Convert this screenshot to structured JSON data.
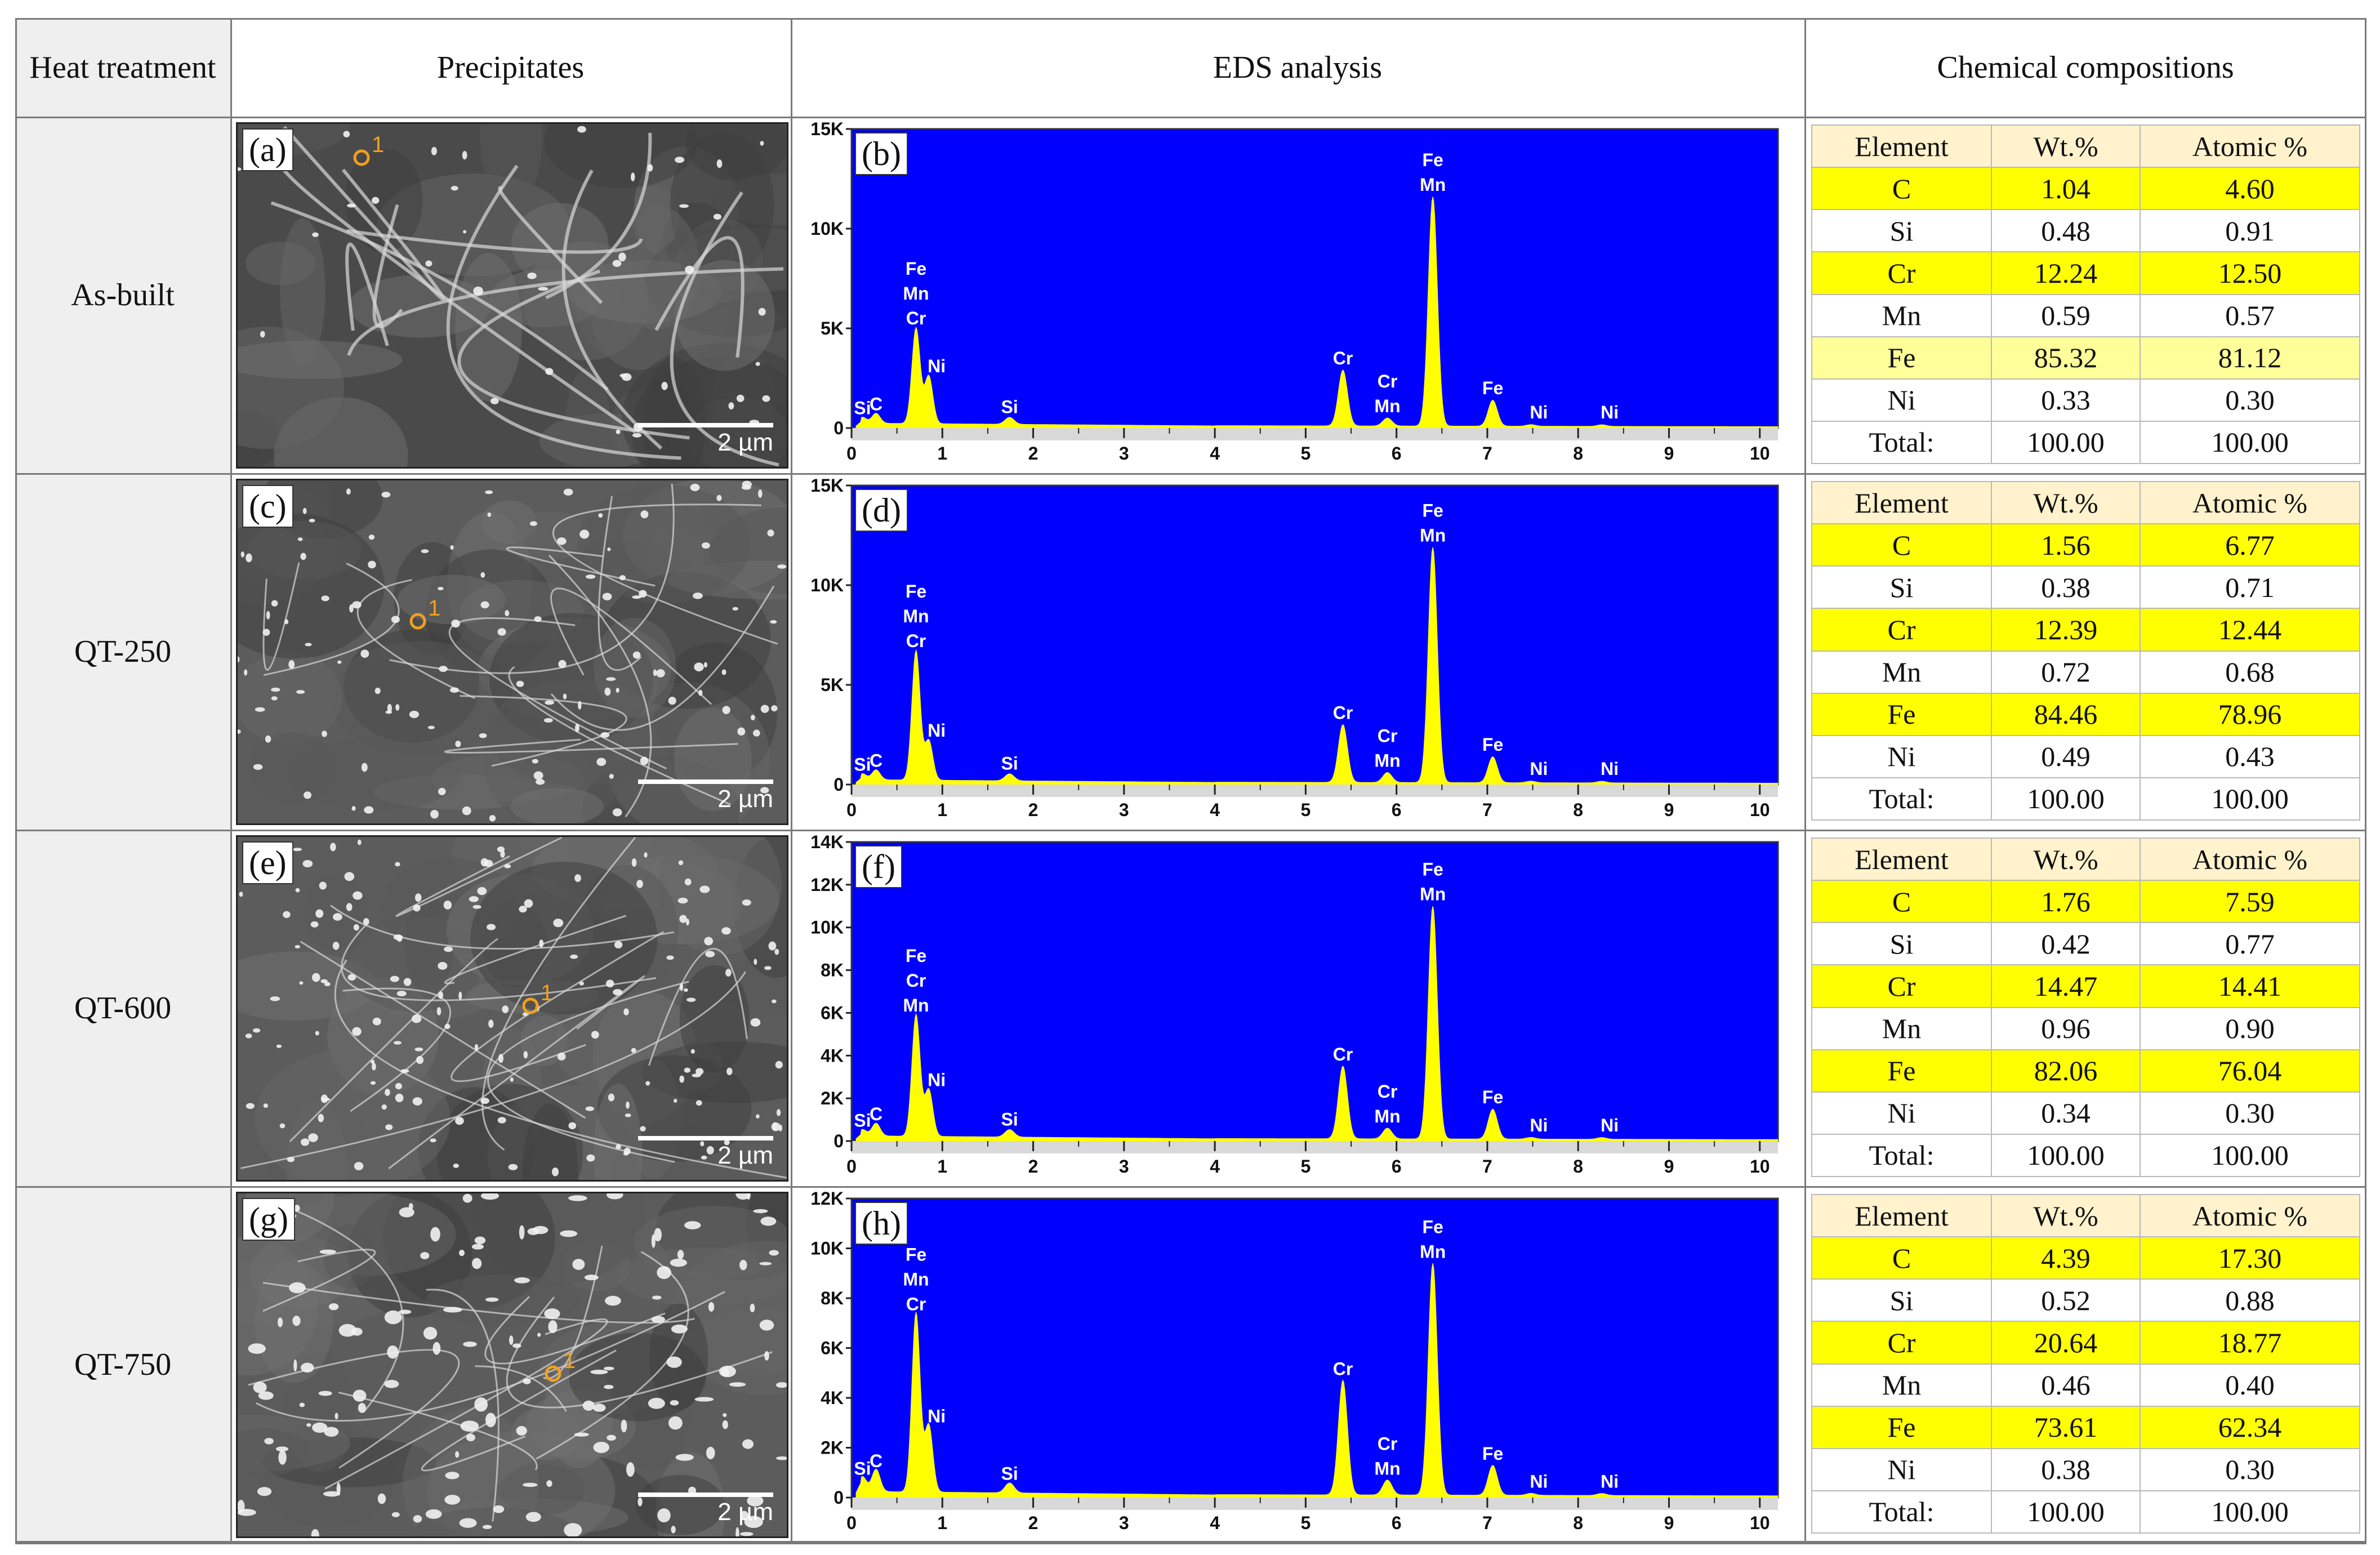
{
  "headers": {
    "heat_treatment": "Heat treatment",
    "precipitates": "Precipitates",
    "eds": "EDS analysis",
    "chem": "Chemical compositions"
  },
  "table_columns": [
    "Element",
    "Wt.%",
    "Atomic %"
  ],
  "total_label": "Total:",
  "scale_label": "2 µm",
  "point_marker": "1",
  "rows": [
    {
      "treatment": "As-built",
      "sem_tag": "(a)",
      "eds_tag": "(b)",
      "yticks": [
        "15K",
        "10K",
        "5K",
        "0"
      ],
      "comp": [
        {
          "el": "C",
          "wt": "1.04",
          "at": "4.60",
          "hl": "hl"
        },
        {
          "el": "Si",
          "wt": "0.48",
          "at": "0.91",
          "hl": "wt"
        },
        {
          "el": "Cr",
          "wt": "12.24",
          "at": "12.50",
          "hl": "hl"
        },
        {
          "el": "Mn",
          "wt": "0.59",
          "at": "0.57",
          "hl": "wt"
        },
        {
          "el": "Fe",
          "wt": "85.32",
          "at": "81.12",
          "hl": "hl2"
        },
        {
          "el": "Ni",
          "wt": "0.33",
          "at": "0.30",
          "hl": "wt"
        }
      ],
      "total": [
        "100.00",
        "100.00"
      ]
    },
    {
      "treatment": "QT-250",
      "sem_tag": "(c)",
      "eds_tag": "(d)",
      "yticks": [
        "15K",
        "10K",
        "5K",
        "0"
      ],
      "comp": [
        {
          "el": "C",
          "wt": "1.56",
          "at": "6.77",
          "hl": "hl"
        },
        {
          "el": "Si",
          "wt": "0.38",
          "at": "0.71",
          "hl": "wt"
        },
        {
          "el": "Cr",
          "wt": "12.39",
          "at": "12.44",
          "hl": "hl"
        },
        {
          "el": "Mn",
          "wt": "0.72",
          "at": "0.68",
          "hl": "wt"
        },
        {
          "el": "Fe",
          "wt": "84.46",
          "at": "78.96",
          "hl": "hl"
        },
        {
          "el": "Ni",
          "wt": "0.49",
          "at": "0.43",
          "hl": "wt"
        }
      ],
      "total": [
        "100.00",
        "100.00"
      ]
    },
    {
      "treatment": "QT-600",
      "sem_tag": "(e)",
      "eds_tag": "(f)",
      "yticks": [
        "14K",
        "12K",
        "10K",
        "8K",
        "6K",
        "4K",
        "2K",
        "0"
      ],
      "comp": [
        {
          "el": "C",
          "wt": "1.76",
          "at": "7.59",
          "hl": "hl"
        },
        {
          "el": "Si",
          "wt": "0.42",
          "at": "0.77",
          "hl": "wt"
        },
        {
          "el": "Cr",
          "wt": "14.47",
          "at": "14.41",
          "hl": "hl"
        },
        {
          "el": "Mn",
          "wt": "0.96",
          "at": "0.90",
          "hl": "wt"
        },
        {
          "el": "Fe",
          "wt": "82.06",
          "at": "76.04",
          "hl": "hl"
        },
        {
          "el": "Ni",
          "wt": "0.34",
          "at": "0.30",
          "hl": "wt"
        }
      ],
      "total": [
        "100.00",
        "100.00"
      ]
    },
    {
      "treatment": "QT-750",
      "sem_tag": "(g)",
      "eds_tag": "(h)",
      "yticks": [
        "12K",
        "10K",
        "8K",
        "6K",
        "4K",
        "2K",
        "0"
      ],
      "comp": [
        {
          "el": "C",
          "wt": "4.39",
          "at": "17.30",
          "hl": "hl"
        },
        {
          "el": "Si",
          "wt": "0.52",
          "at": "0.88",
          "hl": "wt"
        },
        {
          "el": "Cr",
          "wt": "20.64",
          "at": "18.77",
          "hl": "hl"
        },
        {
          "el": "Mn",
          "wt": "0.46",
          "at": "0.40",
          "hl": "wt"
        },
        {
          "el": "Fe",
          "wt": "73.61",
          "at": "62.34",
          "hl": "hl"
        },
        {
          "el": "Ni",
          "wt": "0.38",
          "at": "0.30",
          "hl": "wt"
        }
      ],
      "total": [
        "100.00",
        "100.00"
      ]
    }
  ],
  "chart_data": [
    {
      "type": "area",
      "panel": "(b)",
      "x_ticks": [
        "0",
        "1",
        "2",
        "3",
        "4",
        "5",
        "6",
        "7",
        "8",
        "9",
        "10"
      ],
      "xlim": [
        0,
        10.2
      ],
      "ylim": [
        0,
        15000
      ],
      "peaks": [
        {
          "x": 0.12,
          "y": 300,
          "label": "Si"
        },
        {
          "x": 0.27,
          "y": 500,
          "label": "C"
        },
        {
          "x": 0.71,
          "y": 4800,
          "label": "Fe Mn Cr"
        },
        {
          "x": 0.85,
          "y": 2400,
          "label": "Ni"
        },
        {
          "x": 1.74,
          "y": 350,
          "label": "Si"
        },
        {
          "x": 5.41,
          "y": 2800,
          "label": "Cr"
        },
        {
          "x": 5.9,
          "y": 400,
          "label": "Cr Mn"
        },
        {
          "x": 6.4,
          "y": 11500,
          "label": "Fe Mn"
        },
        {
          "x": 7.06,
          "y": 1300,
          "label": "Fe"
        },
        {
          "x": 7.48,
          "y": 80,
          "label": "Ni"
        },
        {
          "x": 8.26,
          "y": 80,
          "label": "Ni"
        }
      ]
    },
    {
      "type": "area",
      "panel": "(d)",
      "x_ticks": [
        "0",
        "1",
        "2",
        "3",
        "4",
        "5",
        "6",
        "7",
        "8",
        "9",
        "10"
      ],
      "xlim": [
        0,
        10.2
      ],
      "ylim": [
        0,
        15000
      ],
      "peaks": [
        {
          "x": 0.12,
          "y": 300,
          "label": "Si"
        },
        {
          "x": 0.27,
          "y": 500,
          "label": "C"
        },
        {
          "x": 0.71,
          "y": 6500,
          "label": "Fe Mn Cr"
        },
        {
          "x": 0.85,
          "y": 2000,
          "label": "Ni"
        },
        {
          "x": 1.74,
          "y": 350,
          "label": "Si"
        },
        {
          "x": 5.41,
          "y": 2900,
          "label": "Cr"
        },
        {
          "x": 5.9,
          "y": 500,
          "label": "Cr Mn"
        },
        {
          "x": 6.4,
          "y": 11800,
          "label": "Fe Mn"
        },
        {
          "x": 7.06,
          "y": 1300,
          "label": "Fe"
        },
        {
          "x": 7.48,
          "y": 80,
          "label": "Ni"
        },
        {
          "x": 8.26,
          "y": 80,
          "label": "Ni"
        }
      ]
    },
    {
      "type": "area",
      "panel": "(f)",
      "x_ticks": [
        "0",
        "1",
        "2",
        "3",
        "4",
        "5",
        "6",
        "7",
        "8",
        "9",
        "10"
      ],
      "xlim": [
        0,
        10.2
      ],
      "ylim": [
        0,
        14000
      ],
      "peaks": [
        {
          "x": 0.12,
          "y": 300,
          "label": "Si"
        },
        {
          "x": 0.27,
          "y": 600,
          "label": "C"
        },
        {
          "x": 0.71,
          "y": 5700,
          "label": "Fe Cr Mn"
        },
        {
          "x": 0.85,
          "y": 2200,
          "label": "Ni"
        },
        {
          "x": 1.74,
          "y": 350,
          "label": "Si"
        },
        {
          "x": 5.41,
          "y": 3400,
          "label": "Cr"
        },
        {
          "x": 5.9,
          "y": 500,
          "label": "Cr Mn"
        },
        {
          "x": 6.4,
          "y": 10900,
          "label": "Fe Mn"
        },
        {
          "x": 7.06,
          "y": 1400,
          "label": "Fe"
        },
        {
          "x": 7.48,
          "y": 80,
          "label": "Ni"
        },
        {
          "x": 8.26,
          "y": 80,
          "label": "Ni"
        }
      ]
    },
    {
      "type": "area",
      "panel": "(h)",
      "x_ticks": [
        "0",
        "1",
        "2",
        "3",
        "4",
        "5",
        "6",
        "7",
        "8",
        "9",
        "10"
      ],
      "xlim": [
        0,
        10.2
      ],
      "ylim": [
        0,
        12000
      ],
      "peaks": [
        {
          "x": 0.12,
          "y": 600,
          "label": "Si"
        },
        {
          "x": 0.27,
          "y": 900,
          "label": "C"
        },
        {
          "x": 0.71,
          "y": 7200,
          "label": "Fe Mn Cr"
        },
        {
          "x": 0.85,
          "y": 2700,
          "label": "Ni"
        },
        {
          "x": 1.74,
          "y": 400,
          "label": "Si"
        },
        {
          "x": 5.41,
          "y": 4600,
          "label": "Cr"
        },
        {
          "x": 5.9,
          "y": 600,
          "label": "Cr Mn"
        },
        {
          "x": 6.4,
          "y": 9300,
          "label": "Fe Mn"
        },
        {
          "x": 7.06,
          "y": 1200,
          "label": "Fe"
        },
        {
          "x": 7.48,
          "y": 80,
          "label": "Ni"
        },
        {
          "x": 8.26,
          "y": 80,
          "label": "Ni"
        }
      ]
    }
  ]
}
